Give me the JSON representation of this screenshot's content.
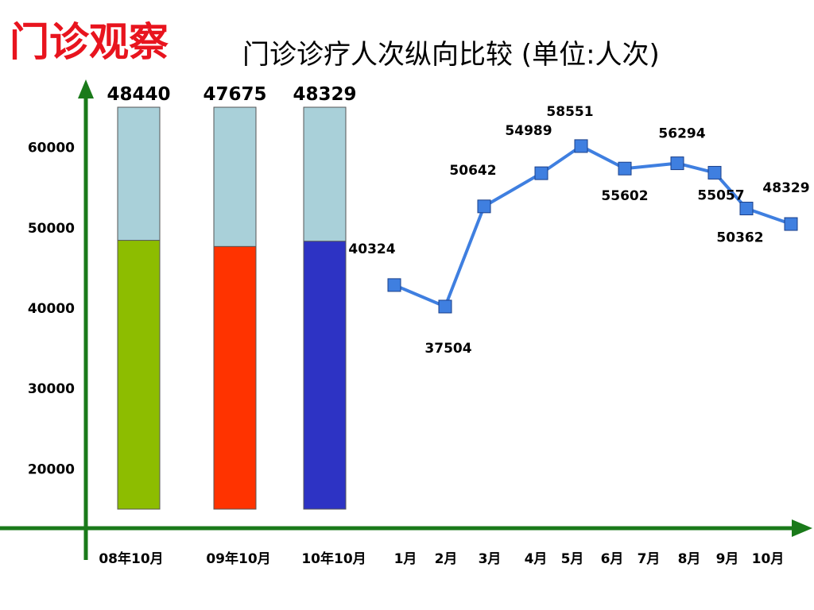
{
  "header": {
    "page_title": "门诊观察",
    "chart_title": "门诊诊疗人次纵向比较 (单位:人次)"
  },
  "colors": {
    "axis": "#1a7a1a",
    "title_red": "#e8141e",
    "bar_bg": "#a9d0d9",
    "line": "#3f7fe0",
    "marker": "#3f7fe0"
  },
  "chart_data": [
    {
      "type": "bar",
      "categories": [
        "08年10月",
        "09年10月",
        "10年10月"
      ],
      "values": [
        48440,
        47675,
        48329
      ],
      "colors": [
        "#8dbd00",
        "#ff3300",
        "#2d33c4"
      ],
      "ylim": [
        15000,
        65000
      ],
      "yticks": [
        20000,
        30000,
        40000,
        50000,
        60000
      ]
    },
    {
      "type": "line",
      "categories": [
        "1月",
        "2月",
        "3月",
        "4月",
        "5月",
        "6月",
        "7月",
        "8月",
        "9月",
        "10月"
      ],
      "values": [
        40324,
        37504,
        50642,
        54989,
        58551,
        55602,
        56294,
        55057,
        50362,
        48329
      ]
    }
  ]
}
